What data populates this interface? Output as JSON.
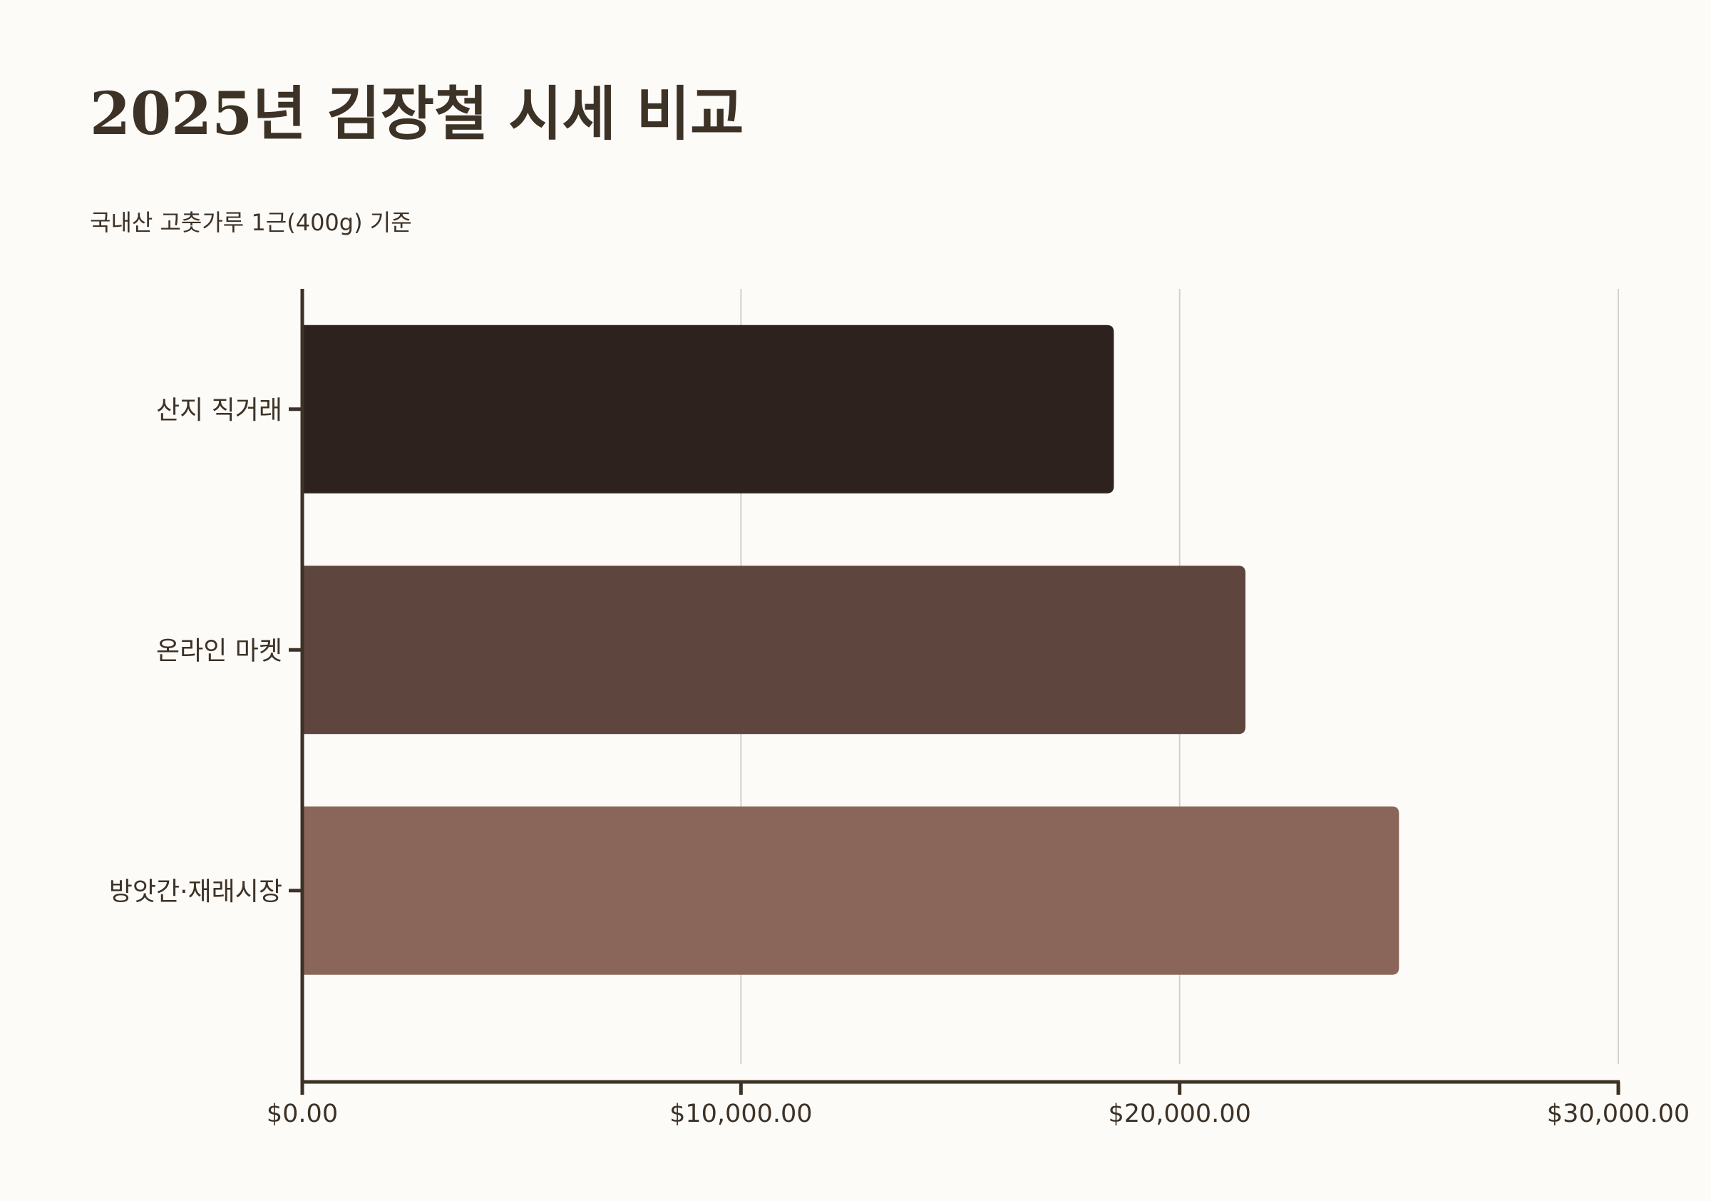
{
  "chart_data": {
    "type": "bar",
    "orientation": "horizontal",
    "title": "2025년 김장철 시세 비교",
    "subtitle": "국내산 고춧가루 1근(400g) 기준",
    "categories": [
      "산지 직거래",
      "온라인 마켓",
      "방앗간·재래시장"
    ],
    "values": [
      18500,
      21500,
      25000
    ],
    "colors": [
      "#2e221e",
      "#5e453d",
      "#8a655a"
    ],
    "xlim": [
      0,
      30000
    ],
    "x_ticks": [
      0,
      10000,
      20000,
      30000
    ],
    "x_tick_labels": [
      "$0.00",
      "$10,000.00",
      "$20,000.00",
      "$30,000.00"
    ],
    "xlabel": "",
    "ylabel": "",
    "grid": "vertical",
    "legend": "none"
  }
}
